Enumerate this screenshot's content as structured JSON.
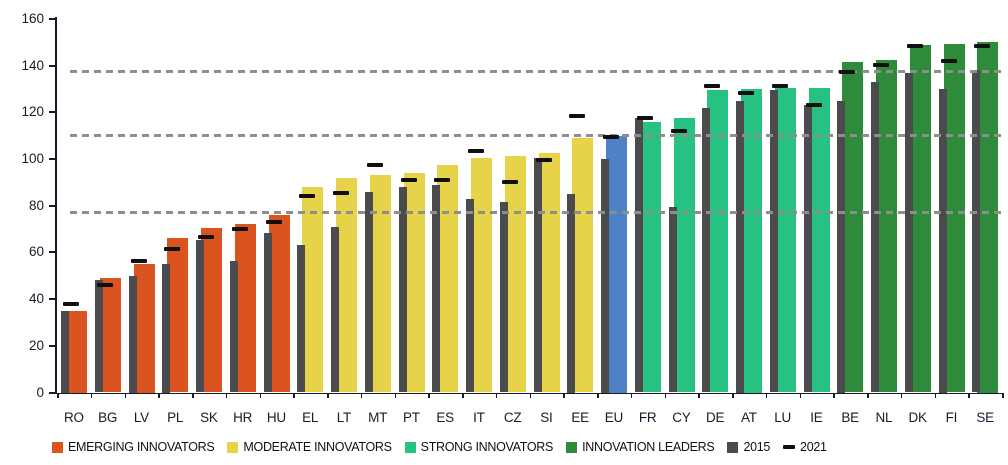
{
  "chart_data": {
    "type": "bar",
    "title": "",
    "xlabel": "",
    "ylabel": "",
    "ylim": [
      0,
      160
    ],
    "yticks": [
      0,
      20,
      40,
      60,
      80,
      100,
      120,
      140,
      160
    ],
    "grid": "three dashed horizontal threshold lines, drawn over bars",
    "threshold_lines": [
      76.9,
      109.9,
      137.4
    ],
    "legend_position": "bottom",
    "series_note": "colored bar = current index by innovator group; gray bar = 2015; black dash = 2021",
    "groups": {
      "emerging": {
        "label": "EMERGING INNOVATORS",
        "color": "#d9541e"
      },
      "moderate": {
        "label": "MODERATE INNOVATORS",
        "color": "#e7d34a"
      },
      "strong": {
        "label": "STRONG INNOVATORS",
        "color": "#27c281"
      },
      "leader": {
        "label": "INNOVATION LEADERS",
        "color": "#2e8b3b"
      },
      "eu": {
        "label": "EU",
        "color": "#4e82c4"
      }
    },
    "series": [
      {
        "name": "2015",
        "color": "#4b4b4d"
      },
      {
        "name": "2021",
        "color": "#101010"
      }
    ],
    "countries": [
      {
        "code": "RO",
        "group": "emerging",
        "value": 35,
        "v2015": 35,
        "v2021": 38
      },
      {
        "code": "BG",
        "group": "emerging",
        "value": 49,
        "v2015": 48,
        "v2021": 46
      },
      {
        "code": "LV",
        "group": "emerging",
        "value": 55,
        "v2015": 50,
        "v2021": 56.5
      },
      {
        "code": "PL",
        "group": "emerging",
        "value": 66,
        "v2015": 55,
        "v2021": 61.5
      },
      {
        "code": "SK",
        "group": "emerging",
        "value": 70.5,
        "v2015": 65.5,
        "v2021": 66.5
      },
      {
        "code": "HR",
        "group": "emerging",
        "value": 72,
        "v2015": 56.5,
        "v2021": 70
      },
      {
        "code": "HU",
        "group": "emerging",
        "value": 76,
        "v2015": 68.5,
        "v2021": 73
      },
      {
        "code": "EL",
        "group": "moderate",
        "value": 88,
        "v2015": 63,
        "v2021": 84
      },
      {
        "code": "LT",
        "group": "moderate",
        "value": 92,
        "v2015": 71,
        "v2021": 85.5
      },
      {
        "code": "MT",
        "group": "moderate",
        "value": 93,
        "v2015": 86,
        "v2021": 97.5
      },
      {
        "code": "PT",
        "group": "moderate",
        "value": 94,
        "v2015": 88,
        "v2021": 91
      },
      {
        "code": "ES",
        "group": "moderate",
        "value": 97.5,
        "v2015": 89,
        "v2021": 91
      },
      {
        "code": "IT",
        "group": "moderate",
        "value": 100.5,
        "v2015": 83,
        "v2021": 103.5
      },
      {
        "code": "CZ",
        "group": "moderate",
        "value": 101.5,
        "v2015": 81.5,
        "v2021": 90
      },
      {
        "code": "SI",
        "group": "moderate",
        "value": 102.5,
        "v2015": 100.5,
        "v2021": 99.5
      },
      {
        "code": "EE",
        "group": "moderate",
        "value": 109,
        "v2015": 85,
        "v2021": 118.5
      },
      {
        "code": "EU",
        "group": "eu",
        "value": 110,
        "v2015": 100,
        "v2021": 109.5
      },
      {
        "code": "FR",
        "group": "strong",
        "value": 116,
        "v2015": 117.5,
        "v2021": 117.5
      },
      {
        "code": "CY",
        "group": "strong",
        "value": 117.5,
        "v2015": 79.5,
        "v2021": 112
      },
      {
        "code": "DE",
        "group": "strong",
        "value": 129.5,
        "v2015": 122,
        "v2021": 131.5
      },
      {
        "code": "AT",
        "group": "strong",
        "value": 130,
        "v2015": 125,
        "v2021": 128.5
      },
      {
        "code": "LU",
        "group": "strong",
        "value": 130.5,
        "v2015": 129.5,
        "v2021": 131.5
      },
      {
        "code": "IE",
        "group": "strong",
        "value": 130.5,
        "v2015": 123,
        "v2021": 123
      },
      {
        "code": "BE",
        "group": "leader",
        "value": 141.5,
        "v2015": 125,
        "v2021": 137.5
      },
      {
        "code": "NL",
        "group": "leader",
        "value": 142.5,
        "v2015": 133,
        "v2021": 140.5
      },
      {
        "code": "DK",
        "group": "leader",
        "value": 149,
        "v2015": 137,
        "v2021": 148.5
      },
      {
        "code": "FI",
        "group": "leader",
        "value": 149.5,
        "v2015": 130,
        "v2021": 142
      },
      {
        "code": "SE",
        "group": "leader",
        "value": 150,
        "v2015": 138,
        "v2021": 148.5
      }
    ],
    "legend": [
      {
        "label": "EMERGING INNOVATORS",
        "swatch": "square",
        "color": "#d9541e"
      },
      {
        "label": "MODERATE INNOVATORS",
        "swatch": "square",
        "color": "#e7d34a"
      },
      {
        "label": "STRONG INNOVATORS",
        "swatch": "square",
        "color": "#27c281"
      },
      {
        "label": "INNOVATION LEADERS",
        "swatch": "square",
        "color": "#2e8b3b"
      },
      {
        "label": "2015",
        "swatch": "square",
        "color": "#4b4b4d"
      },
      {
        "label": "2021",
        "swatch": "dash",
        "color": "#101010"
      }
    ]
  },
  "colors": {
    "background": "#ffffff",
    "axis": "#1a1a2b",
    "gridline": "#8e8e8e",
    "text": "#1a1a2b"
  }
}
